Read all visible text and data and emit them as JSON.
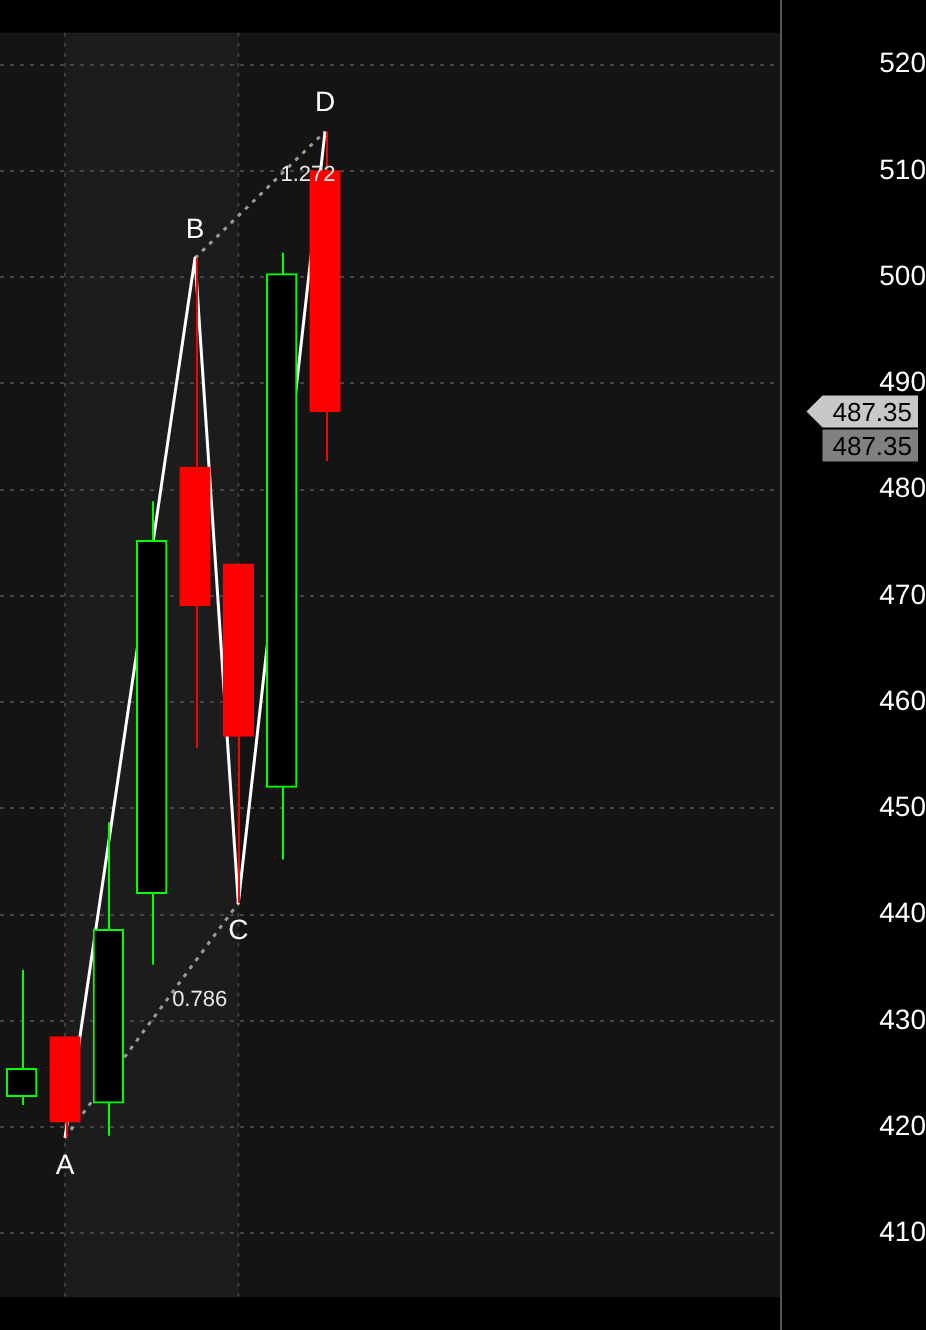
{
  "chart_data": {
    "type": "candlestick",
    "categories": [
      null,
      null,
      null,
      null,
      null,
      null,
      null,
      null,
      null,
      null,
      null,
      null,
      null,
      null,
      null,
      null,
      null,
      null
    ],
    "ohlc": [
      [
        422.9,
        434.8,
        422.1,
        425.5
      ],
      [
        428.5,
        428.5,
        419.0,
        420.5
      ],
      [
        422.3,
        448.7,
        419.2,
        438.6
      ],
      [
        442.0,
        478.9,
        435.3,
        475.2
      ],
      [
        482.1,
        501.8,
        455.7,
        469.1
      ],
      [
        473.0,
        473.0,
        441.1,
        456.8
      ],
      [
        452.0,
        502.3,
        445.2,
        500.3
      ],
      [
        510.0,
        513.7,
        482.7,
        487.35
      ],
      null,
      null,
      null,
      null,
      null,
      null,
      null,
      null,
      null,
      null
    ],
    "series": [
      {
        "type": "line",
        "color": "#ffffff",
        "line_style": "solid",
        "values": [
          null,
          419.0,
          null,
          null,
          501.8,
          441.1,
          null,
          513.7,
          null,
          null,
          null,
          null,
          null,
          null,
          null,
          null,
          null,
          null
        ]
      },
      {
        "type": "line",
        "color": "#9a9a9a",
        "line_style": "dotted",
        "values": [
          null,
          419.0,
          null,
          null,
          null,
          441.1,
          null,
          null,
          null,
          null,
          null,
          null,
          null,
          null,
          null,
          null,
          null,
          null
        ]
      },
      {
        "type": "line",
        "color": "#9a9a9a",
        "line_style": "dotted",
        "values": [
          null,
          null,
          null,
          null,
          501.8,
          null,
          null,
          513.7,
          null,
          null,
          null,
          null,
          null,
          null,
          null,
          null,
          null,
          null
        ]
      }
    ],
    "annotations": [
      "A",
      "B",
      "C",
      "D",
      "0.786",
      "1.272",
      "487.35",
      "487.35"
    ],
    "ylim": [
      404,
      523
    ],
    "yticks": [
      410,
      420,
      430,
      440,
      450,
      460,
      470,
      480,
      490,
      500,
      510,
      520
    ],
    "grid": "y",
    "marker": "none",
    "legend": false,
    "tick_labels": "y"
  }
}
